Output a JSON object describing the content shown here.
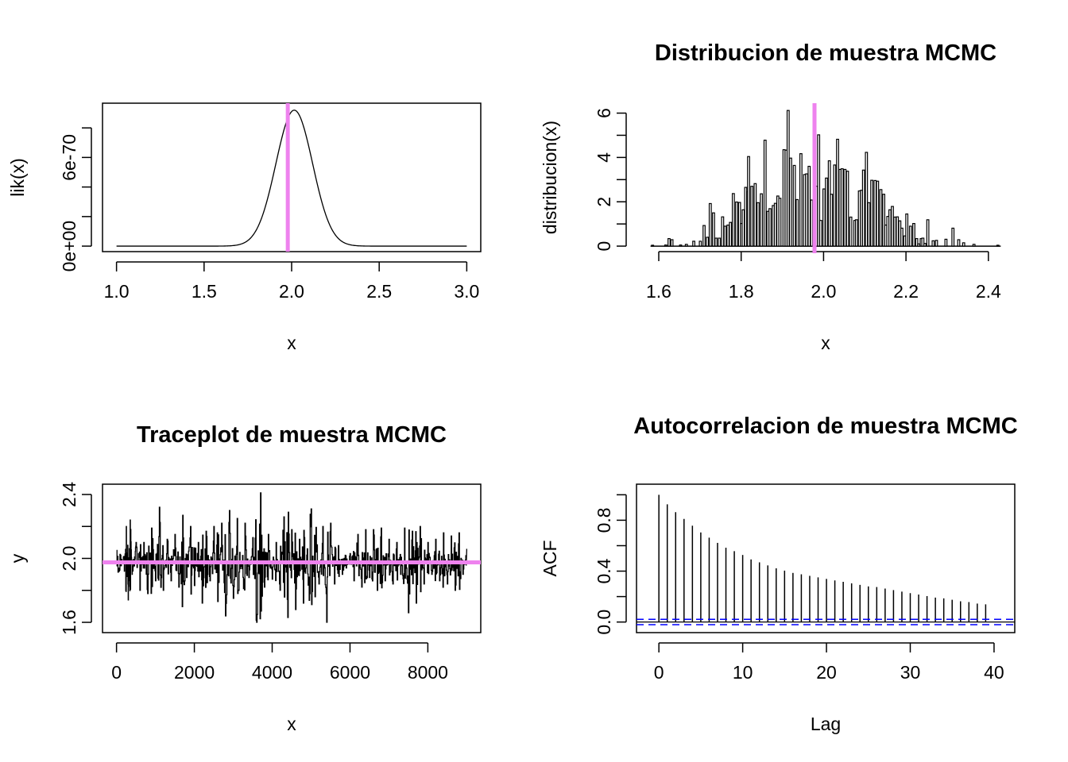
{
  "chart_data": [
    {
      "id": "likelihood",
      "type": "line",
      "title": "",
      "xlabel": "x",
      "ylabel": "lik(x)",
      "xlim": [
        1.0,
        3.0
      ],
      "ylim": [
        0,
        9.3e-70
      ],
      "x_ticks": [
        1.0,
        1.5,
        2.0,
        2.5,
        3.0
      ],
      "x_tick_labels": [
        "1.0",
        "1.5",
        "2.0",
        "2.5",
        "3.0"
      ],
      "y_ticks": [
        0,
        2e-70,
        4e-70,
        6e-70,
        8e-70
      ],
      "y_tick_labels": [
        "0e+00",
        "",
        "",
        "6e-70",
        ""
      ],
      "curve": {
        "shape": "gaussian",
        "peak_x": 2.015,
        "peak_y": 9.2e-70,
        "sd": 0.105,
        "x_from": 1.0,
        "x_to": 3.0
      },
      "vline": {
        "x": 1.978,
        "color": "#EE82EE"
      },
      "grid": false
    },
    {
      "id": "distribution",
      "type": "bar",
      "title": "Distribucion de muestra MCMC",
      "xlabel": "x",
      "ylabel": "distribucion(x)",
      "xlim": [
        1.58,
        2.43
      ],
      "ylim": [
        0,
        6.2
      ],
      "x_ticks": [
        1.6,
        1.8,
        2.0,
        2.2,
        2.4
      ],
      "x_tick_labels": [
        "1.6",
        "1.8",
        "2.0",
        "2.2",
        "2.4"
      ],
      "y_ticks": [
        0,
        1,
        2,
        3,
        4,
        5,
        6
      ],
      "y_tick_labels": [
        "0",
        "",
        "2",
        "",
        "4",
        "",
        "6"
      ],
      "bin_width": 0.005,
      "bins": [
        [
          1.585,
          0.04
        ],
        [
          1.617,
          0.05
        ],
        [
          1.625,
          0.34
        ],
        [
          1.632,
          0.29
        ],
        [
          1.653,
          0.05
        ],
        [
          1.667,
          0.08
        ],
        [
          1.685,
          0.22
        ],
        [
          1.701,
          0.22
        ],
        [
          1.71,
          0.93
        ],
        [
          1.718,
          0.4
        ],
        [
          1.725,
          1.92
        ],
        [
          1.733,
          1.5
        ],
        [
          1.739,
          0.36
        ],
        [
          1.747,
          0.36
        ],
        [
          1.755,
          1.32
        ],
        [
          1.761,
          0.9
        ],
        [
          1.768,
          0.95
        ],
        [
          1.774,
          1.07
        ],
        [
          1.781,
          2.37
        ],
        [
          1.789,
          1.99
        ],
        [
          1.796,
          1.97
        ],
        [
          1.801,
          1.02
        ],
        [
          1.805,
          1.64
        ],
        [
          1.811,
          2.65
        ],
        [
          1.816,
          2.46
        ],
        [
          1.818,
          4.04
        ],
        [
          1.826,
          2.7
        ],
        [
          1.834,
          2.82
        ],
        [
          1.841,
          1.96
        ],
        [
          1.849,
          2.36
        ],
        [
          1.858,
          4.78
        ],
        [
          1.865,
          1.57
        ],
        [
          1.87,
          1.69
        ],
        [
          1.878,
          1.83
        ],
        [
          1.883,
          1.93
        ],
        [
          1.889,
          2.26
        ],
        [
          1.894,
          2.16
        ],
        [
          1.904,
          4.35
        ],
        [
          1.909,
          4.33
        ],
        [
          1.914,
          6.12
        ],
        [
          1.92,
          3.97
        ],
        [
          1.929,
          3.64
        ],
        [
          1.936,
          2.1
        ],
        [
          1.945,
          4.17
        ],
        [
          1.954,
          3.23
        ],
        [
          1.959,
          3.26
        ],
        [
          1.965,
          3.6
        ],
        [
          1.971,
          2.08
        ],
        [
          1.983,
          2.7
        ],
        [
          1.988,
          5.02
        ],
        [
          1.993,
          1.16
        ],
        [
          2.001,
          2.58
        ],
        [
          2.007,
          3.07
        ],
        [
          2.014,
          3.85
        ],
        [
          2.019,
          2.34
        ],
        [
          2.027,
          3.66
        ],
        [
          2.034,
          4.82
        ],
        [
          2.04,
          3.46
        ],
        [
          2.045,
          3.49
        ],
        [
          2.052,
          3.46
        ],
        [
          2.058,
          3.38
        ],
        [
          2.066,
          1.31
        ],
        [
          2.076,
          1.16
        ],
        [
          2.08,
          1.19
        ],
        [
          2.087,
          2.49
        ],
        [
          2.092,
          2.52
        ],
        [
          2.097,
          3.43
        ],
        [
          2.104,
          4.23
        ],
        [
          2.11,
          1.96
        ],
        [
          2.117,
          2.97
        ],
        [
          2.125,
          2.96
        ],
        [
          2.131,
          2.93
        ],
        [
          2.139,
          2.55
        ],
        [
          2.146,
          2.34
        ],
        [
          2.151,
          0.95
        ],
        [
          2.156,
          1.34
        ],
        [
          2.161,
          1.64
        ],
        [
          2.167,
          1.79
        ],
        [
          2.173,
          1.31
        ],
        [
          2.179,
          1.32
        ],
        [
          2.185,
          1.14
        ],
        [
          2.19,
          0.81
        ],
        [
          2.197,
          0.46
        ],
        [
          2.202,
          1.45
        ],
        [
          2.211,
          0.9
        ],
        [
          2.219,
          1.02
        ],
        [
          2.226,
          0.34
        ],
        [
          2.231,
          0.1
        ],
        [
          2.237,
          0.34
        ],
        [
          2.241,
          0.36
        ],
        [
          2.246,
          0.12
        ],
        [
          2.253,
          1.19
        ],
        [
          2.266,
          0.24
        ],
        [
          2.274,
          0.26
        ],
        [
          2.297,
          0.31
        ],
        [
          2.314,
          0.81
        ],
        [
          2.328,
          0.29
        ],
        [
          2.34,
          0.15
        ],
        [
          2.365,
          0.08
        ],
        [
          2.423,
          0.04
        ]
      ],
      "vline": {
        "x": 1.978,
        "color": "#EE82EE"
      },
      "grid": false
    },
    {
      "id": "traceplot",
      "type": "line",
      "title": "Traceplot de muestra MCMC",
      "xlabel": "x",
      "ylabel": "y",
      "xlim": [
        0,
        9000
      ],
      "ylim": [
        1.57,
        2.43
      ],
      "x_ticks": [
        0,
        2000,
        4000,
        6000,
        8000
      ],
      "x_tick_labels": [
        "0",
        "2000",
        "4000",
        "6000",
        "8000"
      ],
      "y_ticks": [
        1.6,
        1.8,
        2.0,
        2.2,
        2.4
      ],
      "y_tick_labels": [
        "1.6",
        "",
        "2.0",
        "",
        "2.4"
      ],
      "series_note": "downsampled trace (approx. min/max excursions read from figure)",
      "x": [
        0,
        100,
        200,
        250,
        300,
        350,
        400,
        450,
        500,
        600,
        700,
        800,
        900,
        1000,
        1100,
        1200,
        1300,
        1400,
        1500,
        1600,
        1700,
        1800,
        1900,
        2000,
        2100,
        2200,
        2300,
        2400,
        2500,
        2600,
        2700,
        2800,
        2900,
        3000,
        3100,
        3200,
        3300,
        3400,
        3500,
        3600,
        3700,
        3800,
        3900,
        4000,
        4100,
        4200,
        4300,
        4400,
        4500,
        4600,
        4700,
        4800,
        4900,
        5000,
        5100,
        5200,
        5300,
        5400,
        5500,
        5600,
        5700,
        5800,
        5900,
        6000,
        6100,
        6200,
        6300,
        6400,
        6500,
        6600,
        6700,
        6800,
        6900,
        7000,
        7100,
        7200,
        7300,
        7400,
        7500,
        7600,
        7700,
        7800,
        7900,
        8000,
        8100,
        8200,
        8300,
        8400,
        8500,
        8600,
        8700,
        8800,
        8900,
        9000
      ],
      "y": [
        2.05,
        2.02,
        1.92,
        2.2,
        1.74,
        2.24,
        1.9,
        1.98,
        2.1,
        1.8,
        2.1,
        1.78,
        2.19,
        1.86,
        2.32,
        1.8,
        2.12,
        1.86,
        2.15,
        1.82,
        2.27,
        1.88,
        2.2,
        1.83,
        2.1,
        1.72,
        2.17,
        1.86,
        2.2,
        1.73,
        2.22,
        1.64,
        2.3,
        1.75,
        2.25,
        1.95,
        2.22,
        1.88,
        2.13,
        1.6,
        2.42,
        1.82,
        2.15,
        1.87,
        2.1,
        1.8,
        2.26,
        1.63,
        2.18,
        1.68,
        2.12,
        1.72,
        2.06,
        2.31,
        1.76,
        1.84,
        2.2,
        1.6,
        2.22,
        1.84,
        2.08,
        1.9,
        1.94,
        2.03,
        1.86,
        2.15,
        1.82,
        2.18,
        1.88,
        2.18,
        1.8,
        2.19,
        1.86,
        2.12,
        1.84,
        2.1,
        1.9,
        2.19,
        1.66,
        2.17,
        1.72,
        2.2,
        1.84,
        2.1,
        1.9,
        2.12,
        1.86,
        2.16,
        1.84,
        2.14,
        1.8,
        2.16,
        1.9,
        2.06
      ],
      "hline": {
        "y": 1.975,
        "color": "#EE82EE"
      },
      "grid": false
    },
    {
      "id": "acf",
      "type": "bar",
      "title": "Autocorrelacion de muestra MCMC",
      "xlabel": "Lag",
      "ylabel": "ACF",
      "xlim": [
        -1.0,
        40.8
      ],
      "ylim": [
        -0.04,
        1.04
      ],
      "x_ticks": [
        0,
        10,
        20,
        30,
        40
      ],
      "x_tick_labels": [
        "0",
        "10",
        "20",
        "30",
        "40"
      ],
      "y_ticks": [
        0.0,
        0.2,
        0.4,
        0.6,
        0.8,
        1.0
      ],
      "y_tick_labels": [
        "0.0",
        "",
        "0.4",
        "",
        "0.8",
        ""
      ],
      "lags": [
        0,
        1,
        2,
        3,
        4,
        5,
        6,
        7,
        8,
        9,
        10,
        11,
        12,
        13,
        14,
        15,
        16,
        17,
        18,
        19,
        20,
        21,
        22,
        23,
        24,
        25,
        26,
        27,
        28,
        29,
        30,
        31,
        32,
        33,
        34,
        35,
        36,
        37,
        38,
        39
      ],
      "values": [
        1.0,
        0.925,
        0.863,
        0.81,
        0.757,
        0.704,
        0.663,
        0.622,
        0.584,
        0.557,
        0.527,
        0.492,
        0.469,
        0.445,
        0.422,
        0.404,
        0.386,
        0.375,
        0.363,
        0.351,
        0.339,
        0.327,
        0.316,
        0.304,
        0.292,
        0.28,
        0.275,
        0.263,
        0.251,
        0.239,
        0.227,
        0.216,
        0.204,
        0.192,
        0.186,
        0.175,
        0.163,
        0.157,
        0.145,
        0.139
      ],
      "ci": {
        "upper": 0.021,
        "lower": -0.021,
        "color": "#0000FF",
        "style": "dashed"
      },
      "grid": false
    }
  ]
}
